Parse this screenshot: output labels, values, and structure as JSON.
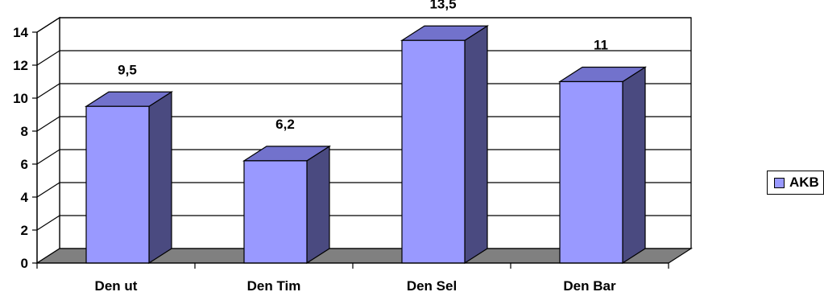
{
  "chart_data": {
    "type": "bar",
    "categories": [
      "Den ut",
      "Den Tim",
      "Den Sel",
      "Den Bar"
    ],
    "series": [
      {
        "name": "AKB",
        "values": [
          9.5,
          6.2,
          13.5,
          11
        ],
        "labels": [
          "9,5",
          "6,2",
          "13,5",
          "11"
        ]
      }
    ],
    "ylim": [
      0,
      14
    ],
    "yticks": [
      0,
      2,
      4,
      6,
      8,
      10,
      12,
      14
    ],
    "grid": true,
    "style": "3d-column",
    "legend_position": "right",
    "colors": {
      "front": "#9999ff",
      "side": "#4a4a80",
      "top": "#7272cc",
      "floor": "#808080"
    }
  },
  "legend": {
    "label": "AKB"
  }
}
